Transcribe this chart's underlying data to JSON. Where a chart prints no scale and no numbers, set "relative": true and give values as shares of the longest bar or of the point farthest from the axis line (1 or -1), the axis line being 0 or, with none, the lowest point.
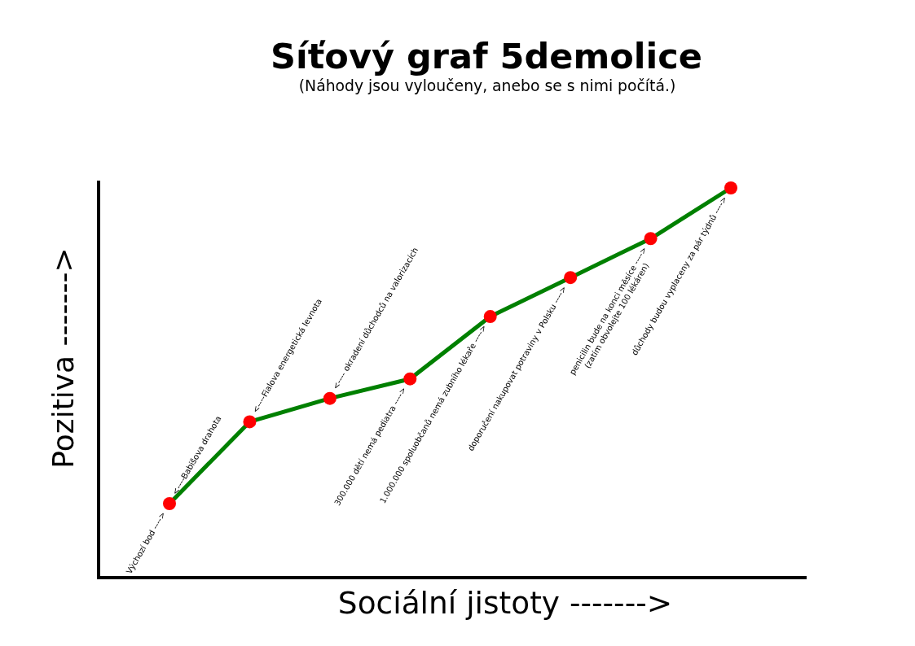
{
  "chart_data": {
    "type": "line",
    "title": "Síťový graf 5demolice",
    "subtitle": "(Náhody jsou vyloučeny, anebo se s nimi počítá.)",
    "xlabel": "Sociální jistoty ------->",
    "ylabel": "Pozitiva ------->",
    "categories": [
      null,
      null,
      null,
      null,
      null,
      null,
      null,
      null
    ],
    "values": [
      0.19,
      0.4,
      0.46,
      0.51,
      0.67,
      0.77,
      0.87,
      1
    ],
    "color": "#008000",
    "colors": [
      "#ff0000",
      "#ff0000",
      "#ff0000",
      "#ff0000",
      "#ff0000",
      "#ff0000",
      "#ff0000",
      "#ff0000"
    ],
    "relative": true,
    "marker": "circle",
    "line_style": "solid",
    "annotations": [
      "Výchozí bod ---->",
      "<----Babišova drahota",
      "<----Fialova energetická levnota",
      "<---- okradení důchodců na valorizacích",
      "300.000 dětí nemá pediatra ---->",
      "1.000.000 spoluobčanů nemá zubního lékaře ---->",
      "doporučení nakupovat potraviny v Polsku ---->",
      "penicilin bude na konci měsíce ---->\n(zatím obvolejte 100 lékáren)",
      "důchody budou vyplaceny za pár týdnů ---->"
    ]
  }
}
